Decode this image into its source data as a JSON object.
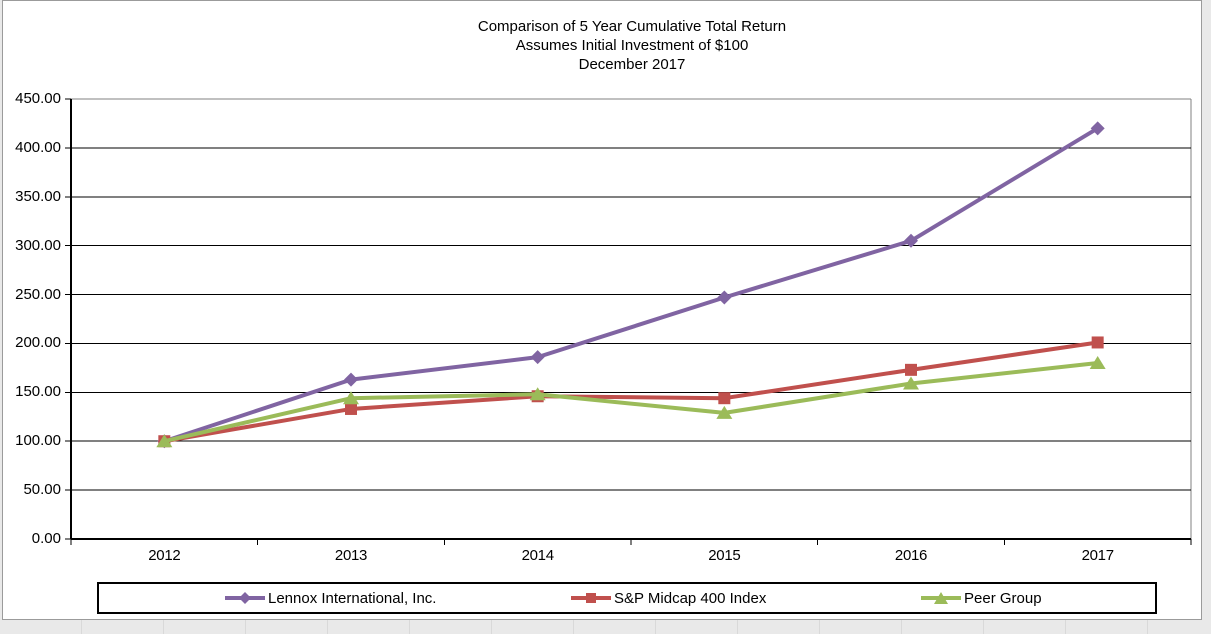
{
  "title": {
    "line1": "Comparison of 5 Year Cumulative Total Return",
    "line2": "Assumes Initial Investment of $100",
    "line3": "December 2017"
  },
  "chart_data": {
    "type": "line",
    "x": [
      "2012",
      "2013",
      "2014",
      "2015",
      "2016",
      "2017"
    ],
    "series": [
      {
        "name": "Lennox International, Inc.",
        "marker": "diamond",
        "color": "#8064A2",
        "values": [
          100.0,
          163.0,
          186.0,
          247.0,
          305.0,
          420.0
        ]
      },
      {
        "name": "S&P Midcap 400 Index",
        "marker": "square",
        "color": "#C0504D",
        "values": [
          100.0,
          133.0,
          146.0,
          144.0,
          173.0,
          201.0
        ]
      },
      {
        "name": "Peer Group",
        "marker": "triangle",
        "color": "#9BBB59",
        "values": [
          100.0,
          144.0,
          148.0,
          129.0,
          159.0,
          180.0
        ]
      }
    ],
    "ylim": [
      0,
      450
    ],
    "ytick_step": 50,
    "ytick_labels": [
      "450.00",
      "400.00",
      "350.00",
      "300.00",
      "250.00",
      "200.00",
      "150.00",
      "100.00",
      "50.00",
      "0.00"
    ],
    "xtick_labels": [
      "2012",
      "2013",
      "2014",
      "2015",
      "2016",
      "2017"
    ],
    "grid": "horizontal",
    "legend_position": "bottom",
    "axis_color": "#000000",
    "gridline_color": "#000000",
    "plot_border_color": "#808080"
  }
}
